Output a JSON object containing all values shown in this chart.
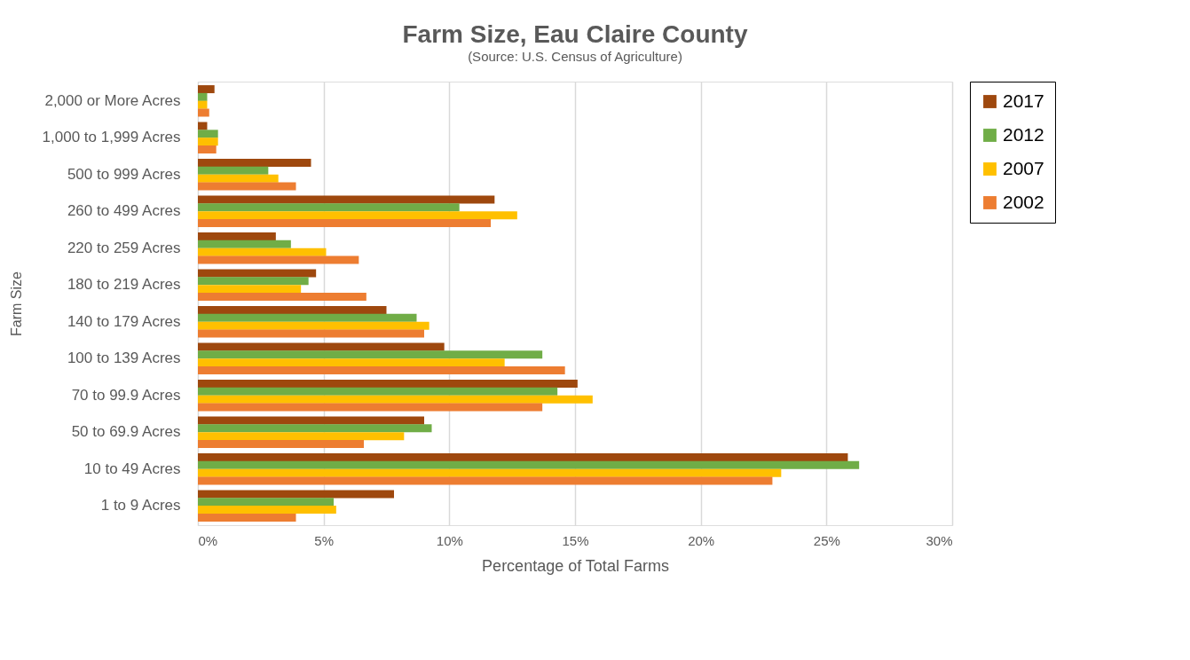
{
  "chart_data": {
    "type": "bar",
    "orientation": "horizontal",
    "title": "Farm Size, Eau Claire County",
    "subtitle": "(Source: U.S. Census of Agriculture)",
    "xlabel": "Percentage of Total Farms",
    "ylabel": "Farm Size",
    "categories": [
      "2,000 or More Acres",
      "1,000 to 1,999 Acres",
      "500 to 999 Acres",
      "260 to 499 Acres",
      "220 to 259 Acres",
      "180 to 219 Acres",
      "140 to 179 Acres",
      "100 to 139 Acres",
      "70 to 99.9 Acres",
      "50 to 69.9 Acres",
      "10 to 49 Acres",
      "1 to 9 Acres"
    ],
    "series": [
      {
        "name": "2017",
        "color": "#9e480e",
        "values": [
          0.66,
          0.37,
          4.5,
          11.8,
          3.1,
          4.7,
          7.5,
          9.8,
          15.1,
          9.0,
          25.85,
          7.8
        ]
      },
      {
        "name": "2012",
        "color": "#70ad47",
        "values": [
          0.37,
          0.8,
          2.8,
          10.4,
          3.7,
          4.4,
          8.7,
          13.7,
          14.3,
          9.3,
          26.3,
          5.4
        ]
      },
      {
        "name": "2007",
        "color": "#ffc000",
        "values": [
          0.37,
          0.8,
          3.2,
          12.7,
          5.1,
          4.1,
          9.2,
          12.2,
          15.7,
          8.2,
          23.2,
          5.5
        ]
      },
      {
        "name": "2002",
        "color": "#ed7d31",
        "values": [
          0.45,
          0.73,
          3.9,
          11.65,
          6.4,
          6.7,
          9.0,
          14.6,
          13.7,
          6.6,
          22.85,
          3.9
        ]
      }
    ],
    "xlim": [
      0,
      30
    ],
    "xticks": [
      {
        "value": 0,
        "label": "0%"
      },
      {
        "value": 5,
        "label": "5%"
      },
      {
        "value": 10,
        "label": "10%"
      },
      {
        "value": 15,
        "label": "15%"
      },
      {
        "value": 20,
        "label": "20%"
      },
      {
        "value": 25,
        "label": "25%"
      },
      {
        "value": 30,
        "label": "30%"
      }
    ],
    "grid": "x",
    "legend": "right"
  }
}
